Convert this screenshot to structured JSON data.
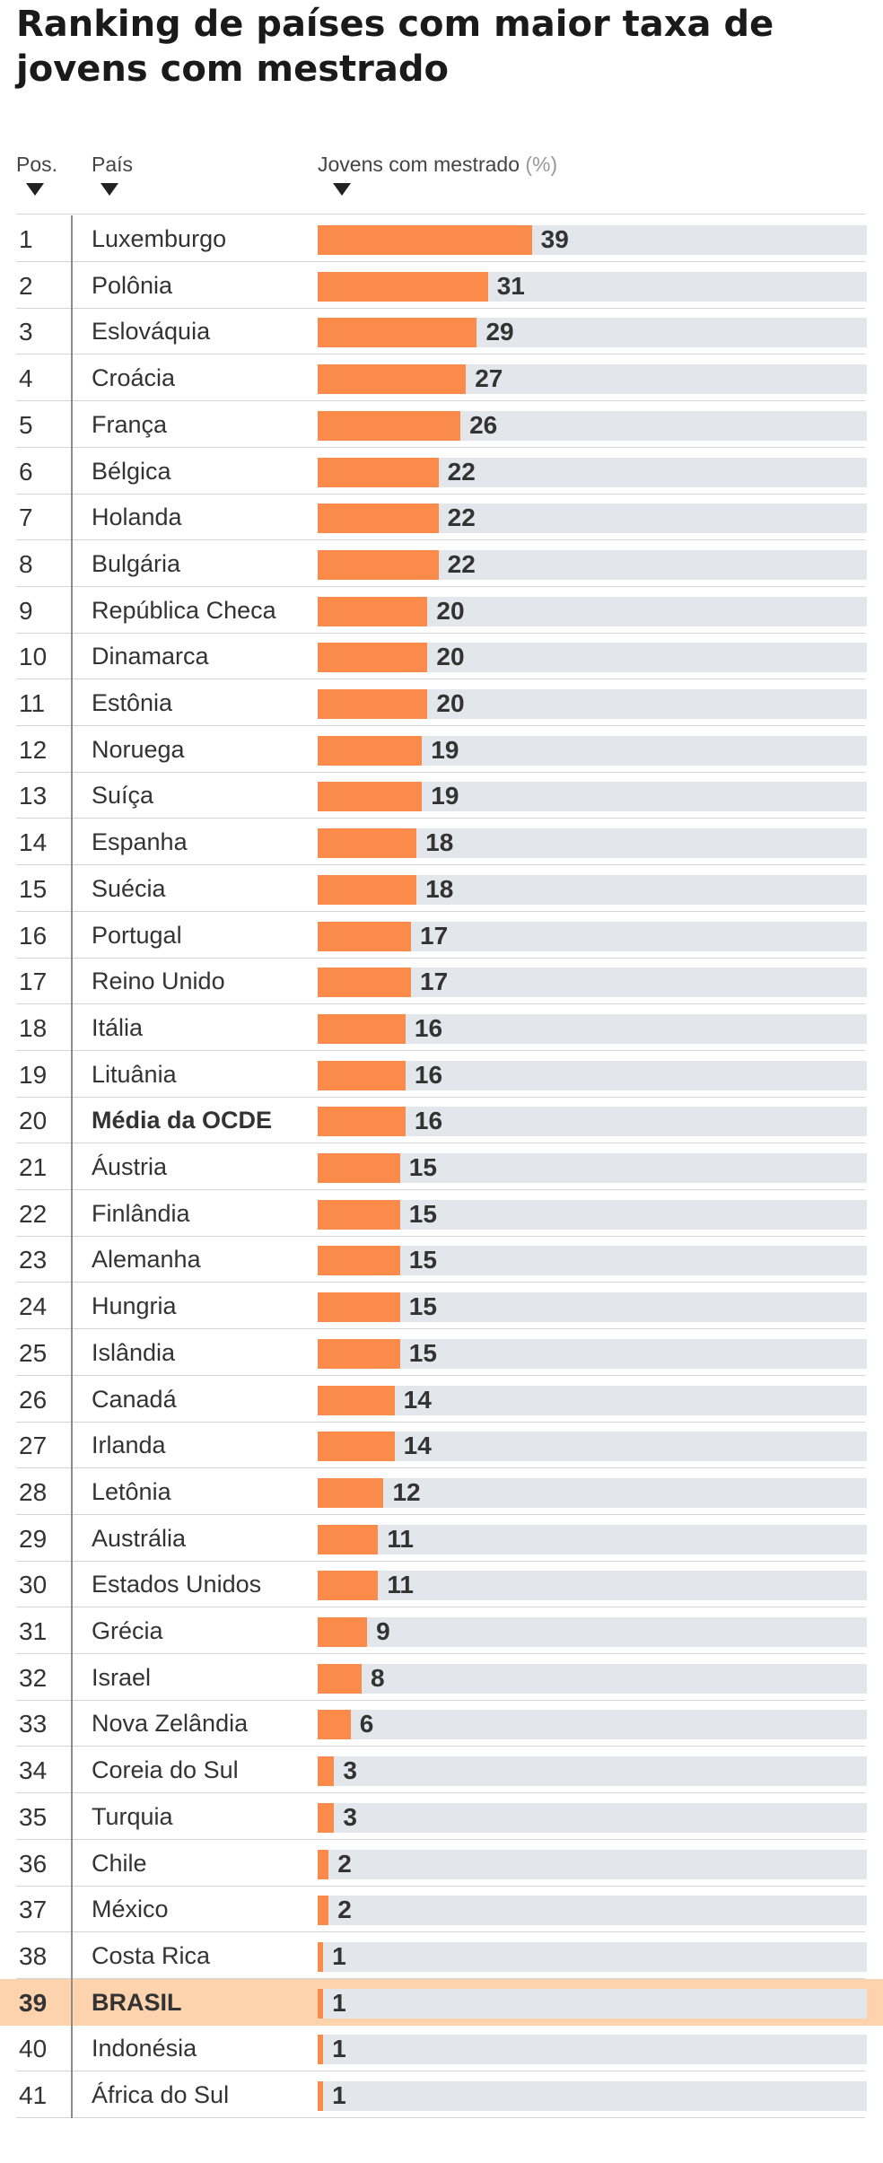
{
  "title": "Ranking de países com maior taxa de jovens com mestrado",
  "columns": {
    "pos": "Pos.",
    "country": "País",
    "value": "Jovens com mestrado",
    "unit": "(%)"
  },
  "colors": {
    "bar": "#fb8b4a",
    "track": "#e3e6ea",
    "highlight": "#fdd3ad"
  },
  "chart_data": {
    "type": "bar",
    "orientation": "horizontal",
    "title": "Ranking de países com maior taxa de jovens com mestrado",
    "xlabel": "Jovens com mestrado (%)",
    "xlim": [
      0,
      100
    ],
    "categories": [
      "Luxemburgo",
      "Polônia",
      "Eslováquia",
      "Croácia",
      "França",
      "Bélgica",
      "Holanda",
      "Bulgária",
      "República Checa",
      "Dinamarca",
      "Estônia",
      "Noruega",
      "Suíça",
      "Espanha",
      "Suécia",
      "Portugal",
      "Reino Unido",
      "Itália",
      "Lituânia",
      "Média da OCDE",
      "Áustria",
      "Finlândia",
      "Alemanha",
      "Hungria",
      "Islândia",
      "Canadá",
      "Irlanda",
      "Letônia",
      "Austrália",
      "Estados Unidos",
      "Grécia",
      "Israel",
      "Nova Zelândia",
      "Coreia do Sul",
      "Turquia",
      "Chile",
      "México",
      "Costa Rica",
      "BRASIL",
      "Indonésia",
      "África do Sul"
    ],
    "positions": [
      1,
      2,
      3,
      4,
      5,
      6,
      7,
      8,
      9,
      10,
      11,
      12,
      13,
      14,
      15,
      16,
      17,
      18,
      19,
      20,
      21,
      22,
      23,
      24,
      25,
      26,
      27,
      28,
      29,
      30,
      31,
      32,
      33,
      34,
      35,
      36,
      37,
      38,
      39,
      40,
      41
    ],
    "values": [
      39,
      31,
      29,
      27,
      26,
      22,
      22,
      22,
      20,
      20,
      20,
      19,
      19,
      18,
      18,
      17,
      17,
      16,
      16,
      16,
      15,
      15,
      15,
      15,
      15,
      14,
      14,
      12,
      11,
      11,
      9,
      8,
      6,
      3,
      3,
      2,
      2,
      1,
      1,
      1,
      1
    ],
    "bold_categories": [
      "Média da OCDE"
    ],
    "highlighted_categories": [
      "BRASIL"
    ]
  }
}
